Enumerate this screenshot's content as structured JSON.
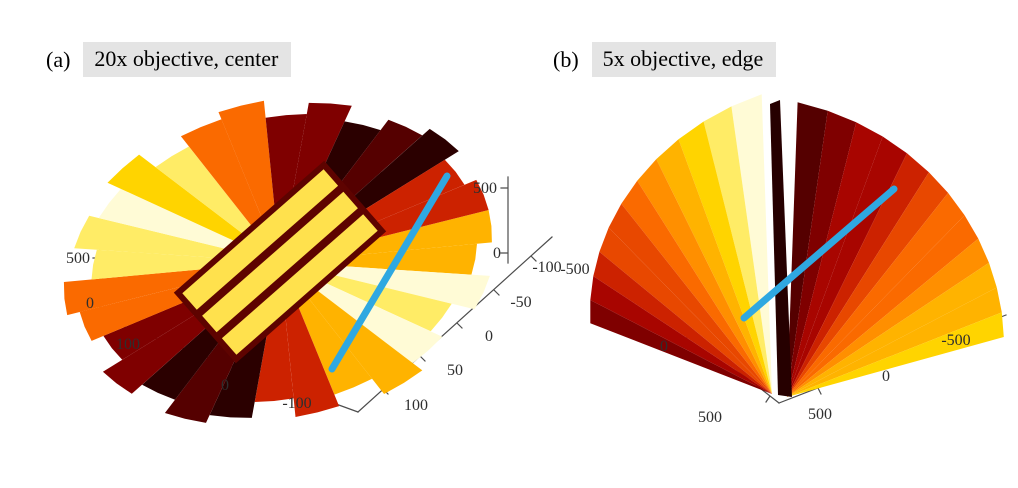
{
  "figure": {
    "panels": [
      {
        "label": "(a)",
        "title": "20x objective, center"
      },
      {
        "label": "(b)",
        "title": "5x objective, edge"
      }
    ]
  },
  "colors": {
    "hot_palette": [
      "#2b0000",
      "#550000",
      "#7f0000",
      "#a80500",
      "#cc2200",
      "#e84800",
      "#fa6a00",
      "#ff8f00",
      "#ffb300",
      "#ffd400",
      "#ffec66",
      "#fffbd6"
    ],
    "profile_line": "#2fa8e1",
    "axis": "#4d4d4d",
    "caption_bg": "#e4e4e4",
    "crevice": "#260000",
    "ridge": "#ffe14d",
    "ridge_gap": "#5e0300"
  },
  "chart_data": [
    {
      "type": "surface",
      "panel": "a",
      "title": "20x objective, center",
      "x_ticks": [
        100,
        0,
        -100
      ],
      "y_ticks": [
        100,
        50,
        0,
        -50,
        -100
      ],
      "z_ticks": [
        500,
        0
      ],
      "zlim": [
        0,
        500
      ],
      "colormap": "hot",
      "grid": false,
      "legend": null,
      "overlay": {
        "type": "profile-line",
        "color": "#2fa8e1"
      },
      "description": "3-D height-map surface measured with a 20x objective at the sample center; wrapped fan-shaped fringes radiate from the middle with three diagonal ridges; a thick blue profile line crosses the structure"
    },
    {
      "type": "surface",
      "panel": "b",
      "title": "5x objective, edge",
      "x_ticks": [
        -500,
        0,
        500
      ],
      "y_ticks": [
        500,
        0,
        -500
      ],
      "z_ticks": [
        500,
        0
      ],
      "zlim": [
        0,
        500
      ],
      "colormap": "hot",
      "grid": false,
      "legend": null,
      "overlay": {
        "type": "profile-line",
        "color": "#2fa8e1"
      },
      "description": "3-D height-map surface measured with a 5x objective at the sample edge; two smooth conical fans meet at a deep narrow dark crevice; a thick blue profile line crosses the crevice"
    }
  ]
}
